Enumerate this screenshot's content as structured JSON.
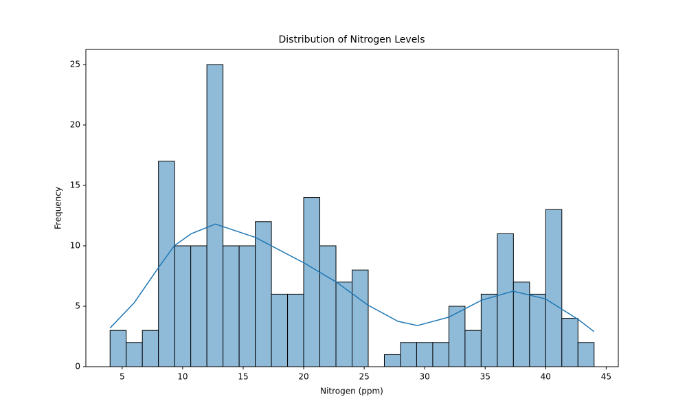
{
  "chart_data": {
    "type": "histogram",
    "title": "Distribution of Nitrogen Levels",
    "x_label": "Nitrogen (ppm)",
    "y_label": "Frequency",
    "bins": [
      4,
      5.333,
      6.667,
      8,
      9.333,
      10.667,
      12,
      13.333,
      14.667,
      16,
      17.333,
      18.667,
      20,
      21.333,
      22.667,
      24,
      25.333,
      26.667,
      28,
      29.333,
      30.667,
      32,
      33.333,
      34.667,
      36,
      37.333,
      38.667,
      40,
      41.333,
      42.667,
      44
    ],
    "counts": [
      3,
      2,
      3,
      17,
      10,
      10,
      25,
      10,
      10,
      12,
      6,
      6,
      14,
      10,
      7,
      8,
      0,
      1,
      2,
      2,
      2,
      5,
      3,
      6,
      11,
      7,
      6,
      13,
      4,
      2
    ],
    "color": "#8fbbd9",
    "edge_color": "#000000",
    "kde": {
      "color": "#1f77b4",
      "x": [
        4,
        6,
        8,
        9.3,
        10.7,
        12.7,
        16,
        20,
        22.7,
        25.3,
        27.8,
        29.4,
        32,
        34.7,
        37.3,
        40,
        42.7,
        44
      ],
      "y": [
        3.2,
        5.3,
        8.2,
        10,
        11,
        11.8,
        10.7,
        8.6,
        7,
        5.1,
        3.75,
        3.4,
        4.1,
        5.5,
        6.25,
        5.6,
        3.9,
        2.9
      ]
    },
    "xlim": [
      2,
      46
    ],
    "ylim": [
      0,
      26.25
    ],
    "xticks": [
      5,
      10,
      15,
      20,
      25,
      30,
      35,
      40,
      45
    ],
    "yticks": [
      0,
      5,
      10,
      15,
      20,
      25
    ]
  }
}
